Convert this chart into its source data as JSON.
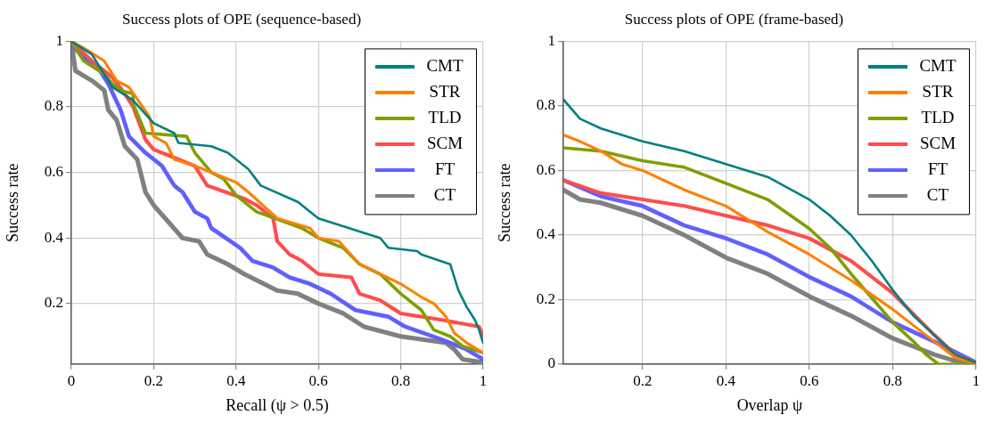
{
  "chart_data": [
    {
      "type": "line",
      "title": "Success plots of OPE (sequence-based)",
      "xlabel": "Recall (ψ > 0.5)",
      "ylabel": "Success rate",
      "xlim": [
        0,
        1
      ],
      "ylim": [
        0.015,
        1
      ],
      "xticks": [
        0,
        0.2,
        0.4,
        0.6,
        0.8,
        1
      ],
      "yticks": [
        0.2,
        0.4,
        0.6,
        0.8,
        1
      ],
      "grid": true,
      "legend": "top right",
      "marker": "none",
      "line_style": "solid",
      "series": [
        {
          "name": "CMT",
          "color": "#008080",
          "x": [
            0,
            0.05,
            0.1,
            0.15,
            0.2,
            0.25,
            0.26,
            0.34,
            0.38,
            0.43,
            0.46,
            0.55,
            0.6,
            0.7,
            0.75,
            0.77,
            0.84,
            0.85,
            0.92,
            0.94,
            0.96,
            0.98,
            0.99,
            1
          ],
          "values": [
            1,
            0.96,
            0.86,
            0.82,
            0.75,
            0.72,
            0.69,
            0.68,
            0.66,
            0.61,
            0.56,
            0.51,
            0.46,
            0.42,
            0.4,
            0.37,
            0.36,
            0.35,
            0.32,
            0.24,
            0.19,
            0.15,
            0.12,
            0.08
          ]
        },
        {
          "name": "STR",
          "color": "#ff8000",
          "x": [
            0,
            0.03,
            0.08,
            0.11,
            0.14,
            0.19,
            0.2,
            0.23,
            0.25,
            0.3,
            0.4,
            0.43,
            0.5,
            0.58,
            0.6,
            0.65,
            0.7,
            0.75,
            0.8,
            0.85,
            0.88,
            0.91,
            0.93,
            0.96,
            1
          ],
          "values": [
            1,
            0.98,
            0.94,
            0.88,
            0.86,
            0.77,
            0.71,
            0.69,
            0.64,
            0.62,
            0.57,
            0.54,
            0.46,
            0.43,
            0.4,
            0.39,
            0.32,
            0.29,
            0.26,
            0.22,
            0.2,
            0.16,
            0.11,
            0.08,
            0.05
          ]
        },
        {
          "name": "TLD",
          "color": "#7f9f00",
          "x": [
            0,
            0.03,
            0.08,
            0.1,
            0.12,
            0.15,
            0.15,
            0.18,
            0.28,
            0.3,
            0.34,
            0.37,
            0.4,
            0.45,
            0.56,
            0.6,
            0.66,
            0.7,
            0.75,
            0.8,
            0.85,
            0.88,
            0.92,
            0.95,
            1
          ],
          "values": [
            1,
            0.94,
            0.9,
            0.87,
            0.85,
            0.84,
            0.81,
            0.72,
            0.71,
            0.66,
            0.6,
            0.58,
            0.53,
            0.48,
            0.43,
            0.4,
            0.37,
            0.32,
            0.29,
            0.23,
            0.18,
            0.12,
            0.1,
            0.07,
            0.05
          ]
        },
        {
          "name": "SCM",
          "color": "#ff4c4c",
          "x": [
            0,
            0.05,
            0.1,
            0.13,
            0.15,
            0.18,
            0.2,
            0.24,
            0.3,
            0.33,
            0.42,
            0.45,
            0.49,
            0.5,
            0.53,
            0.56,
            0.6,
            0.68,
            0.7,
            0.75,
            0.8,
            0.9,
            0.99,
            1
          ],
          "values": [
            1,
            0.94,
            0.89,
            0.84,
            0.8,
            0.7,
            0.67,
            0.65,
            0.62,
            0.56,
            0.52,
            0.5,
            0.46,
            0.39,
            0.35,
            0.33,
            0.29,
            0.28,
            0.23,
            0.21,
            0.17,
            0.15,
            0.13,
            0.1
          ]
        },
        {
          "name": "FT",
          "color": "#6060ff",
          "x": [
            0,
            0.03,
            0.06,
            0.09,
            0.12,
            0.14,
            0.18,
            0.22,
            0.25,
            0.27,
            0.3,
            0.33,
            0.34,
            0.41,
            0.44,
            0.49,
            0.53,
            0.58,
            0.63,
            0.69,
            0.77,
            0.81,
            0.9,
            0.96,
            1
          ],
          "values": [
            0.99,
            0.95,
            0.93,
            0.87,
            0.79,
            0.71,
            0.66,
            0.62,
            0.56,
            0.54,
            0.48,
            0.46,
            0.43,
            0.37,
            0.33,
            0.31,
            0.28,
            0.26,
            0.23,
            0.18,
            0.16,
            0.13,
            0.09,
            0.06,
            0.03
          ]
        },
        {
          "name": "CT",
          "color": "#808080",
          "x": [
            0,
            0.01,
            0.05,
            0.08,
            0.09,
            0.11,
            0.13,
            0.16,
            0.18,
            0.2,
            0.27,
            0.31,
            0.33,
            0.38,
            0.42,
            0.5,
            0.55,
            0.6,
            0.66,
            0.71,
            0.8,
            0.91,
            0.93,
            0.95,
            1
          ],
          "values": [
            1,
            0.91,
            0.88,
            0.85,
            0.79,
            0.76,
            0.68,
            0.64,
            0.54,
            0.5,
            0.4,
            0.39,
            0.35,
            0.32,
            0.29,
            0.24,
            0.23,
            0.2,
            0.17,
            0.13,
            0.1,
            0.08,
            0.06,
            0.03,
            0.02
          ]
        }
      ]
    },
    {
      "type": "line",
      "title": "Success plots of OPE (frame-based)",
      "xlabel": "Overlap ψ",
      "ylabel": "Success rate",
      "xlim": [
        0.01,
        1
      ],
      "ylim": [
        0,
        1
      ],
      "xticks": [
        0.2,
        0.4,
        0.6,
        0.8,
        1
      ],
      "yticks": [
        0,
        0.2,
        0.4,
        0.6,
        0.8,
        1
      ],
      "grid": true,
      "legend": "top right",
      "marker": "none",
      "line_style": "solid",
      "series": [
        {
          "name": "CMT",
          "color": "#008080",
          "x": [
            0.01,
            0.05,
            0.1,
            0.2,
            0.3,
            0.4,
            0.5,
            0.6,
            0.65,
            0.7,
            0.75,
            0.8,
            0.85,
            0.9,
            0.95,
            1
          ],
          "values": [
            0.82,
            0.76,
            0.73,
            0.69,
            0.66,
            0.62,
            0.58,
            0.51,
            0.46,
            0.4,
            0.32,
            0.23,
            0.15,
            0.09,
            0.03,
            0.005
          ]
        },
        {
          "name": "STR",
          "color": "#ff8000",
          "x": [
            0.01,
            0.05,
            0.1,
            0.15,
            0.2,
            0.3,
            0.4,
            0.5,
            0.6,
            0.7,
            0.8,
            0.9,
            0.95,
            1
          ],
          "values": [
            0.71,
            0.69,
            0.66,
            0.62,
            0.6,
            0.54,
            0.49,
            0.41,
            0.34,
            0.26,
            0.17,
            0.07,
            0.02,
            0.003
          ]
        },
        {
          "name": "TLD",
          "color": "#7f9f00",
          "x": [
            0.01,
            0.1,
            0.2,
            0.3,
            0.4,
            0.5,
            0.6,
            0.65,
            0.7,
            0.8,
            0.85,
            0.88,
            0.91,
            1
          ],
          "values": [
            0.67,
            0.66,
            0.63,
            0.61,
            0.56,
            0.51,
            0.42,
            0.36,
            0.28,
            0.13,
            0.07,
            0.03,
            0,
            0
          ]
        },
        {
          "name": "SCM",
          "color": "#ff4c4c",
          "x": [
            0.01,
            0.1,
            0.2,
            0.3,
            0.4,
            0.5,
            0.6,
            0.7,
            0.8,
            0.9,
            0.95,
            1
          ],
          "values": [
            0.57,
            0.53,
            0.51,
            0.49,
            0.46,
            0.43,
            0.39,
            0.32,
            0.22,
            0.09,
            0.03,
            0.005
          ]
        },
        {
          "name": "FT",
          "color": "#6060ff",
          "x": [
            0.01,
            0.1,
            0.2,
            0.3,
            0.4,
            0.5,
            0.6,
            0.7,
            0.8,
            0.9,
            1
          ],
          "values": [
            0.57,
            0.52,
            0.49,
            0.43,
            0.39,
            0.34,
            0.27,
            0.21,
            0.13,
            0.07,
            0.005
          ]
        },
        {
          "name": "CT",
          "color": "#808080",
          "x": [
            0.01,
            0.05,
            0.1,
            0.2,
            0.3,
            0.4,
            0.5,
            0.6,
            0.7,
            0.8,
            0.9,
            0.95,
            1
          ],
          "values": [
            0.54,
            0.51,
            0.5,
            0.46,
            0.4,
            0.33,
            0.28,
            0.21,
            0.15,
            0.08,
            0.03,
            0.01,
            0.003
          ]
        }
      ]
    }
  ]
}
